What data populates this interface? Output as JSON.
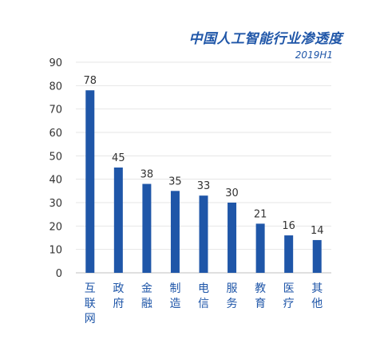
{
  "chart_data": {
    "type": "bar",
    "title": "中国人工智能行业渗透度",
    "subtitle": "2019H1",
    "categories": [
      "互联网",
      "政府",
      "金融",
      "制造",
      "电信",
      "服务",
      "教育",
      "医疗",
      "其他"
    ],
    "values": [
      78,
      45,
      38,
      35,
      33,
      30,
      21,
      16,
      14
    ],
    "ylim": [
      0,
      90
    ],
    "yticks": [
      0,
      10,
      20,
      30,
      40,
      50,
      60,
      70,
      80,
      90
    ],
    "xlabel": "",
    "ylabel": "",
    "grid": true,
    "bar_color": "#1f56a8",
    "grid_color": "#e6e6e6",
    "text_color": "#333333"
  }
}
